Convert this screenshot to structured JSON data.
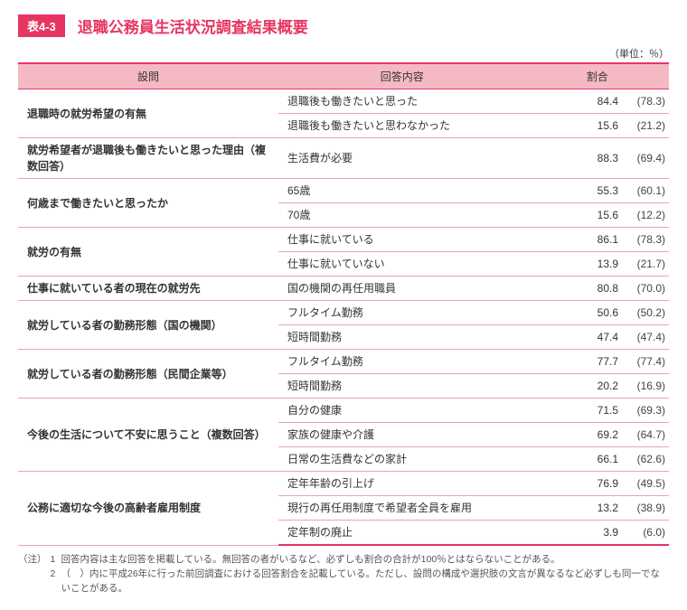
{
  "header": {
    "tag": "表4-3",
    "title": "退職公務員生活状況調査結果概要",
    "unit": "（単位：％）"
  },
  "columns": {
    "question": "設問",
    "answer": "回答内容",
    "percent": "割合"
  },
  "rows": [
    {
      "q": "退職時の就労希望の有無",
      "answers": [
        {
          "a": "退職後も働きたいと思った",
          "p": "84.4",
          "prev": "(78.3)"
        },
        {
          "a": "退職後も働きたいと思わなかった",
          "p": "15.6",
          "prev": "(21.2)"
        }
      ]
    },
    {
      "q": "就労希望者が退職後も働きたいと思った理由（複数回答）",
      "answers": [
        {
          "a": "生活費が必要",
          "p": "88.3",
          "prev": "(69.4)"
        }
      ]
    },
    {
      "q": "何歳まで働きたいと思ったか",
      "answers": [
        {
          "a": "65歳",
          "p": "55.3",
          "prev": "(60.1)"
        },
        {
          "a": "70歳",
          "p": "15.6",
          "prev": "(12.2)"
        }
      ]
    },
    {
      "q": "就労の有無",
      "answers": [
        {
          "a": "仕事に就いている",
          "p": "86.1",
          "prev": "(78.3)"
        },
        {
          "a": "仕事に就いていない",
          "p": "13.9",
          "prev": "(21.7)"
        }
      ]
    },
    {
      "q": "仕事に就いている者の現在の就労先",
      "answers": [
        {
          "a": "国の機関の再任用職員",
          "p": "80.8",
          "prev": "(70.0)"
        }
      ]
    },
    {
      "q": "就労している者の勤務形態（国の機関）",
      "answers": [
        {
          "a": "フルタイム勤務",
          "p": "50.6",
          "prev": "(50.2)"
        },
        {
          "a": "短時間勤務",
          "p": "47.4",
          "prev": "(47.4)"
        }
      ]
    },
    {
      "q": "就労している者の勤務形態（民間企業等）",
      "answers": [
        {
          "a": "フルタイム勤務",
          "p": "77.7",
          "prev": "(77.4)"
        },
        {
          "a": "短時間勤務",
          "p": "20.2",
          "prev": "(16.9)"
        }
      ]
    },
    {
      "q": "今後の生活について不安に思うこと（複数回答）",
      "answers": [
        {
          "a": "自分の健康",
          "p": "71.5",
          "prev": "(69.3)"
        },
        {
          "a": "家族の健康や介護",
          "p": "69.2",
          "prev": "(64.7)"
        },
        {
          "a": "日常の生活費などの家計",
          "p": "66.1",
          "prev": "(62.6)"
        }
      ]
    },
    {
      "q": "公務に適切な今後の高齢者雇用制度",
      "answers": [
        {
          "a": "定年年齢の引上げ",
          "p": "76.9",
          "prev": "(49.5)"
        },
        {
          "a": "現行の再任用制度で希望者全員を雇用",
          "p": "13.2",
          "prev": "(38.9)"
        },
        {
          "a": "定年制の廃止",
          "p": "3.9",
          "prev": "(6.0)"
        }
      ]
    }
  ],
  "notes": {
    "label": "（注）",
    "items": [
      {
        "num": "1",
        "text": "回答内容は主な回答を掲載している。無回答の者がいるなど、必ずしも割合の合計が100％とはならないことがある。"
      },
      {
        "num": "2",
        "text": "（　）内に平成26年に行った前回調査における回答割合を記載している。ただし、設問の構成や選択肢の文言が異なるなど必ずしも同一でないことがある。"
      }
    ]
  },
  "colors": {
    "accent": "#e73562",
    "header_bg": "#f5b9c4",
    "row_border": "#e8a5b3"
  }
}
